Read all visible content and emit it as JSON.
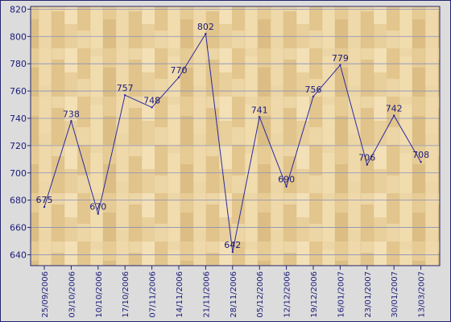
{
  "chart_data": {
    "type": "line",
    "categories": [
      "25/09/2006",
      "03/10/2006",
      "10/10/2006",
      "17/10/2006",
      "07/11/2006",
      "14/11/2006",
      "21/11/2006",
      "28/11/2006",
      "05/12/2006",
      "12/12/2006",
      "19/12/2006",
      "16/01/2007",
      "23/01/2007",
      "30/01/2007",
      "13/03/2007"
    ],
    "values": [
      675,
      738,
      670,
      757,
      748,
      770,
      802,
      642,
      741,
      690,
      756,
      779,
      706,
      742,
      708
    ],
    "value_labels": [
      "675",
      "738",
      "670",
      "757",
      "748",
      "770",
      "802",
      "642",
      "741",
      "690",
      "756",
      "779",
      "706",
      "742",
      "708"
    ],
    "y_ticks": [
      "640",
      "660",
      "680",
      "700",
      "720",
      "740",
      "760",
      "780",
      "800",
      "820"
    ],
    "ylim": [
      632,
      822
    ],
    "grid": true,
    "colors": {
      "line": "#2a2aa0",
      "label": "#1b1b7a",
      "tick": "#1b1b7a",
      "grid": "#8a8fb8",
      "frame": "#24246e",
      "plot_bg": "#ead3a2"
    }
  }
}
